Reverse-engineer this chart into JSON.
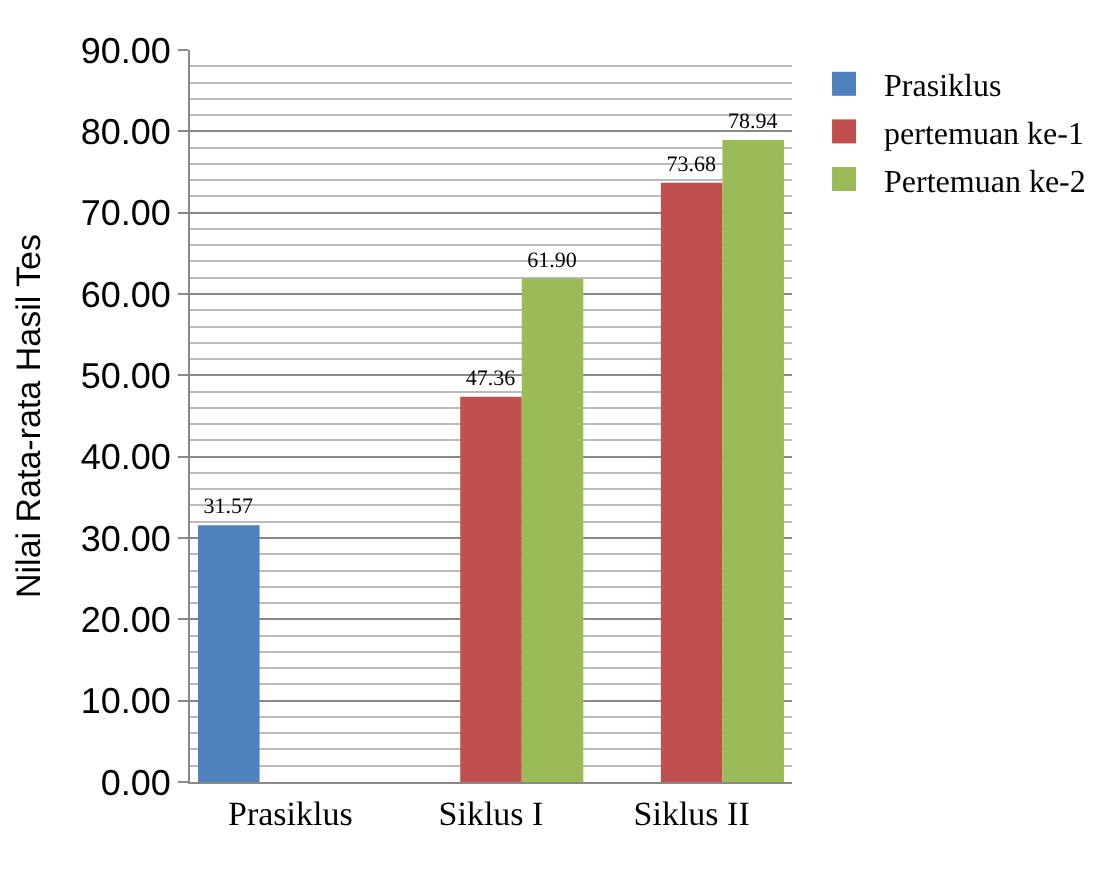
{
  "chart_data": {
    "type": "bar",
    "ylabel": "Nilai Rata-rata Hasil Tes",
    "categories": [
      "Prasiklus",
      "Siklus I",
      "Siklus II"
    ],
    "series": [
      {
        "name": "Prasiklus",
        "color": "#4f81bd",
        "values": [
          31.57,
          null,
          null
        ],
        "value_labels": [
          "31.57",
          null,
          null
        ]
      },
      {
        "name": "pertemuan ke-1",
        "color": "#c0504d",
        "values": [
          null,
          47.36,
          73.68
        ],
        "value_labels": [
          null,
          "47.36",
          "73.68"
        ]
      },
      {
        "name": "Pertemuan ke-2",
        "color": "#9bbb59",
        "values": [
          null,
          61.9,
          78.94
        ],
        "value_labels": [
          null,
          "61.90",
          "78.94"
        ]
      }
    ],
    "ylim": [
      0,
      90
    ],
    "yticks": [
      {
        "value": 0,
        "label": "0.00"
      },
      {
        "value": 10,
        "label": "10.00"
      },
      {
        "value": 20,
        "label": "20.00"
      },
      {
        "value": 30,
        "label": "30.00"
      },
      {
        "value": 40,
        "label": "40.00"
      },
      {
        "value": 50,
        "label": "50.00"
      },
      {
        "value": 60,
        "label": "60.00"
      },
      {
        "value": 70,
        "label": "70.00"
      },
      {
        "value": 80,
        "label": "80.00"
      },
      {
        "value": 90,
        "label": "90.00"
      }
    ],
    "grid": "y",
    "legend": "right"
  }
}
